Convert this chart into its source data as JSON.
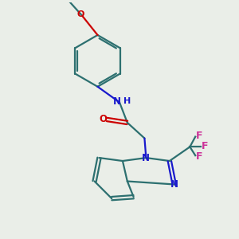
{
  "bg_color": "#eaeee8",
  "bond_color": "#2d7070",
  "N_color": "#1a1acc",
  "O_color": "#cc0000",
  "F_color": "#cc3399",
  "lw": 1.6,
  "dbo": 0.022,
  "xlim": [
    0,
    3.0
  ],
  "ylim": [
    0,
    3.0
  ]
}
